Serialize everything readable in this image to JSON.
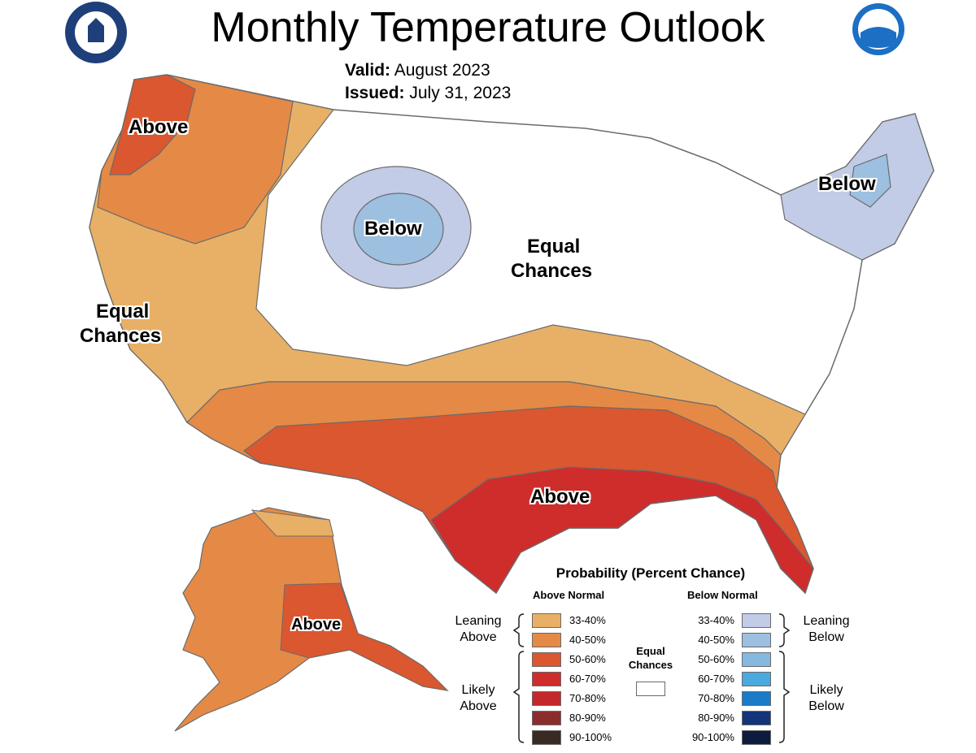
{
  "header": {
    "title": "Monthly Temperature Outlook",
    "valid_label": "Valid:",
    "valid_value": "August 2023",
    "issued_label": "Issued:",
    "issued_value": "July 31, 2023"
  },
  "map": {
    "regions": [
      {
        "label": "Above",
        "category": "above"
      },
      {
        "label": "Below",
        "category": "below"
      },
      {
        "label": "Equal",
        "category": "equal"
      },
      {
        "label": "Chances",
        "category": "equal"
      }
    ],
    "labels": {
      "nw_above": "Above",
      "plains_below": "Below",
      "ne_below": "Below",
      "ca_equal_1": "Equal",
      "ca_equal_2": "Chances",
      "mid_equal_1": "Equal",
      "mid_equal_2": "Chances",
      "south_above": "Above",
      "alaska_above": "Above"
    }
  },
  "legend": {
    "title": "Probability (Percent Chance)",
    "above_header": "Above Normal",
    "below_header": "Below Normal",
    "equal_label_1": "Equal",
    "equal_label_2": "Chances",
    "leaning_above_1": "Leaning",
    "leaning_above_2": "Above",
    "likely_above_1": "Likely",
    "likely_above_2": "Above",
    "leaning_below_1": "Leaning",
    "leaning_below_2": "Below",
    "likely_below_1": "Likely",
    "likely_below_2": "Below",
    "above": [
      {
        "range": "33-40%",
        "color": "#e8b066"
      },
      {
        "range": "40-50%",
        "color": "#e48a46"
      },
      {
        "range": "50-60%",
        "color": "#da5730"
      },
      {
        "range": "60-70%",
        "color": "#cf2c2c"
      },
      {
        "range": "70-80%",
        "color": "#c4282b"
      },
      {
        "range": "80-90%",
        "color": "#8b2d2d"
      },
      {
        "range": "90-100%",
        "color": "#3a2a24"
      }
    ],
    "below": [
      {
        "range": "33-40%",
        "color": "#c2cce6"
      },
      {
        "range": "40-50%",
        "color": "#9dbfe0"
      },
      {
        "range": "50-60%",
        "color": "#86b9df"
      },
      {
        "range": "60-70%",
        "color": "#4aa9df"
      },
      {
        "range": "70-80%",
        "color": "#1a7bc9"
      },
      {
        "range": "80-90%",
        "color": "#14347a"
      },
      {
        "range": "90-100%",
        "color": "#0d1b3e"
      }
    ],
    "equal_color": "#ffffff"
  },
  "logos": {
    "left": "Department of Commerce seal",
    "right": "NOAA"
  }
}
